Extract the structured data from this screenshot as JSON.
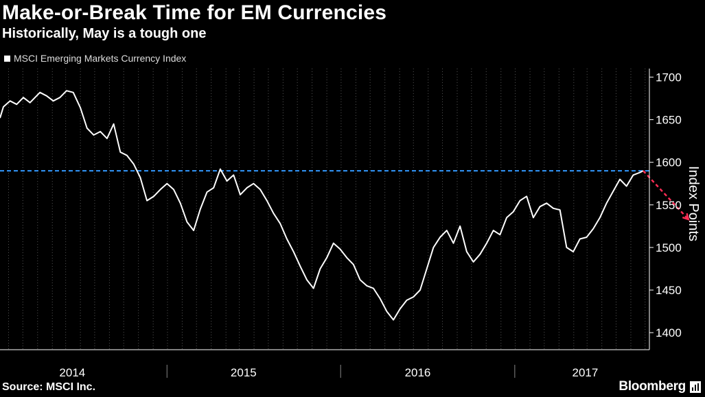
{
  "header": {
    "title": "Make-or-Break Time for EM Currencies",
    "subtitle": "Historically, May is a tough one"
  },
  "footer": {
    "source": "Source: MSCI Inc.",
    "brand": "Bloomberg"
  },
  "colors": {
    "background": "#000000",
    "series": "#ffffff",
    "reference_line": "#3399ff",
    "projection": "#ff2d55",
    "grid": "#555555"
  },
  "chart_data": {
    "type": "line",
    "ylabel": "Index Points",
    "ylim": [
      1380,
      1710
    ],
    "yticks": [
      1400,
      1450,
      1500,
      1550,
      1600,
      1650,
      1700
    ],
    "xlim": [
      "2013-10-14",
      "2017-07-10"
    ],
    "year_labels": [
      {
        "label": "2014",
        "date": "2014-03-15"
      },
      {
        "label": "2015",
        "date": "2015-03-10"
      },
      {
        "label": "2016",
        "date": "2016-03-10"
      },
      {
        "label": "2017",
        "date": "2017-02-25"
      }
    ],
    "year_dividers": [
      "2014-09-30",
      "2015-09-30",
      "2016-09-30"
    ],
    "grid": "vertical",
    "legend": "top-left",
    "reference_line": {
      "y": 1590,
      "style": "dashed"
    },
    "series": [
      {
        "name": "MSCI Emerging Markets Currency Index",
        "points": [
          [
            "2013-10-14",
            1652
          ],
          [
            "2013-10-21",
            1665
          ],
          [
            "2013-11-04",
            1672
          ],
          [
            "2013-11-18",
            1668
          ],
          [
            "2013-12-02",
            1676
          ],
          [
            "2013-12-16",
            1670
          ],
          [
            "2014-01-06",
            1682
          ],
          [
            "2014-01-20",
            1678
          ],
          [
            "2014-02-03",
            1672
          ],
          [
            "2014-02-17",
            1676
          ],
          [
            "2014-03-03",
            1684
          ],
          [
            "2014-03-17",
            1682
          ],
          [
            "2014-04-01",
            1664
          ],
          [
            "2014-04-15",
            1640
          ],
          [
            "2014-04-29",
            1632
          ],
          [
            "2014-05-13",
            1636
          ],
          [
            "2014-05-27",
            1628
          ],
          [
            "2014-06-10",
            1645
          ],
          [
            "2014-06-24",
            1612
          ],
          [
            "2014-07-08",
            1608
          ],
          [
            "2014-07-22",
            1598
          ],
          [
            "2014-08-05",
            1582
          ],
          [
            "2014-08-19",
            1555
          ],
          [
            "2014-09-02",
            1560
          ],
          [
            "2014-09-16",
            1568
          ],
          [
            "2014-09-30",
            1575
          ],
          [
            "2014-10-14",
            1568
          ],
          [
            "2014-10-28",
            1552
          ],
          [
            "2014-11-11",
            1530
          ],
          [
            "2014-11-25",
            1520
          ],
          [
            "2014-12-09",
            1545
          ],
          [
            "2014-12-23",
            1565
          ],
          [
            "2015-01-06",
            1570
          ],
          [
            "2015-01-20",
            1592
          ],
          [
            "2015-02-03",
            1578
          ],
          [
            "2015-02-17",
            1585
          ],
          [
            "2015-03-03",
            1562
          ],
          [
            "2015-03-17",
            1570
          ],
          [
            "2015-03-31",
            1575
          ],
          [
            "2015-04-14",
            1568
          ],
          [
            "2015-04-28",
            1555
          ],
          [
            "2015-05-12",
            1540
          ],
          [
            "2015-05-26",
            1528
          ],
          [
            "2015-06-09",
            1510
          ],
          [
            "2015-06-23",
            1495
          ],
          [
            "2015-07-07",
            1478
          ],
          [
            "2015-07-21",
            1462
          ],
          [
            "2015-08-04",
            1452
          ],
          [
            "2015-08-18",
            1475
          ],
          [
            "2015-09-01",
            1488
          ],
          [
            "2015-09-15",
            1505
          ],
          [
            "2015-09-29",
            1498
          ],
          [
            "2015-10-13",
            1488
          ],
          [
            "2015-10-27",
            1480
          ],
          [
            "2015-11-10",
            1462
          ],
          [
            "2015-11-24",
            1455
          ],
          [
            "2015-12-08",
            1452
          ],
          [
            "2015-12-22",
            1440
          ],
          [
            "2016-01-05",
            1425
          ],
          [
            "2016-01-19",
            1415
          ],
          [
            "2016-02-02",
            1428
          ],
          [
            "2016-02-16",
            1438
          ],
          [
            "2016-03-01",
            1442
          ],
          [
            "2016-03-15",
            1450
          ],
          [
            "2016-03-29",
            1475
          ],
          [
            "2016-04-12",
            1500
          ],
          [
            "2016-04-26",
            1512
          ],
          [
            "2016-05-10",
            1520
          ],
          [
            "2016-05-24",
            1505
          ],
          [
            "2016-06-07",
            1525
          ],
          [
            "2016-06-21",
            1495
          ],
          [
            "2016-07-05",
            1483
          ],
          [
            "2016-07-19",
            1492
          ],
          [
            "2016-08-02",
            1505
          ],
          [
            "2016-08-16",
            1520
          ],
          [
            "2016-08-30",
            1515
          ],
          [
            "2016-09-13",
            1535
          ],
          [
            "2016-09-27",
            1542
          ],
          [
            "2016-10-11",
            1555
          ],
          [
            "2016-10-25",
            1560
          ],
          [
            "2016-11-08",
            1535
          ],
          [
            "2016-11-22",
            1548
          ],
          [
            "2016-12-06",
            1552
          ],
          [
            "2016-12-20",
            1546
          ],
          [
            "2017-01-03",
            1544
          ],
          [
            "2017-01-17",
            1500
          ],
          [
            "2017-01-31",
            1495
          ],
          [
            "2017-02-14",
            1510
          ],
          [
            "2017-02-28",
            1512
          ],
          [
            "2017-03-14",
            1522
          ],
          [
            "2017-03-28",
            1535
          ],
          [
            "2017-04-11",
            1552
          ],
          [
            "2017-04-25",
            1566
          ],
          [
            "2017-05-09",
            1580
          ],
          [
            "2017-05-23",
            1572
          ],
          [
            "2017-06-06",
            1585
          ],
          [
            "2017-06-20",
            1588
          ],
          [
            "2017-06-27",
            1590
          ]
        ]
      }
    ],
    "projection": {
      "style": "dashed",
      "from": [
        "2017-06-27",
        1590
      ],
      "to": [
        "2017-09-30",
        1533
      ]
    }
  }
}
